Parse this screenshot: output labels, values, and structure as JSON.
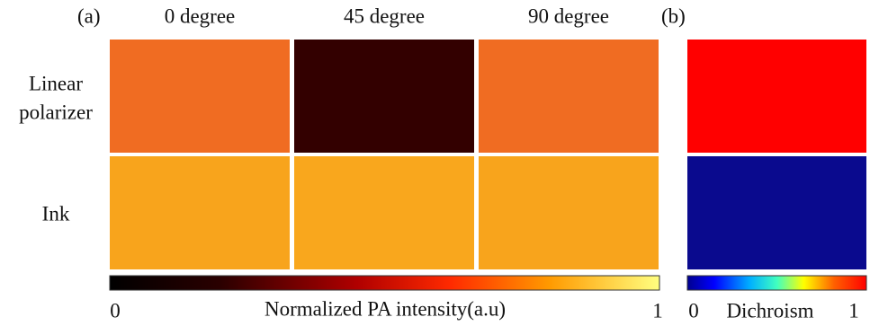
{
  "panels": {
    "a": "(a)",
    "b": "(b)"
  },
  "columns": [
    "0 degree",
    "45 degree",
    "90 degree"
  ],
  "rows": [
    {
      "label": [
        "Linear",
        "polarizer"
      ]
    },
    {
      "label": [
        "Ink"
      ]
    }
  ],
  "colorbars": [
    {
      "min": "0",
      "title": "Normalized PA intensity(a.u)",
      "max": "1"
    },
    {
      "min": "0",
      "title": "Dichroism",
      "max": "1"
    }
  ]
}
